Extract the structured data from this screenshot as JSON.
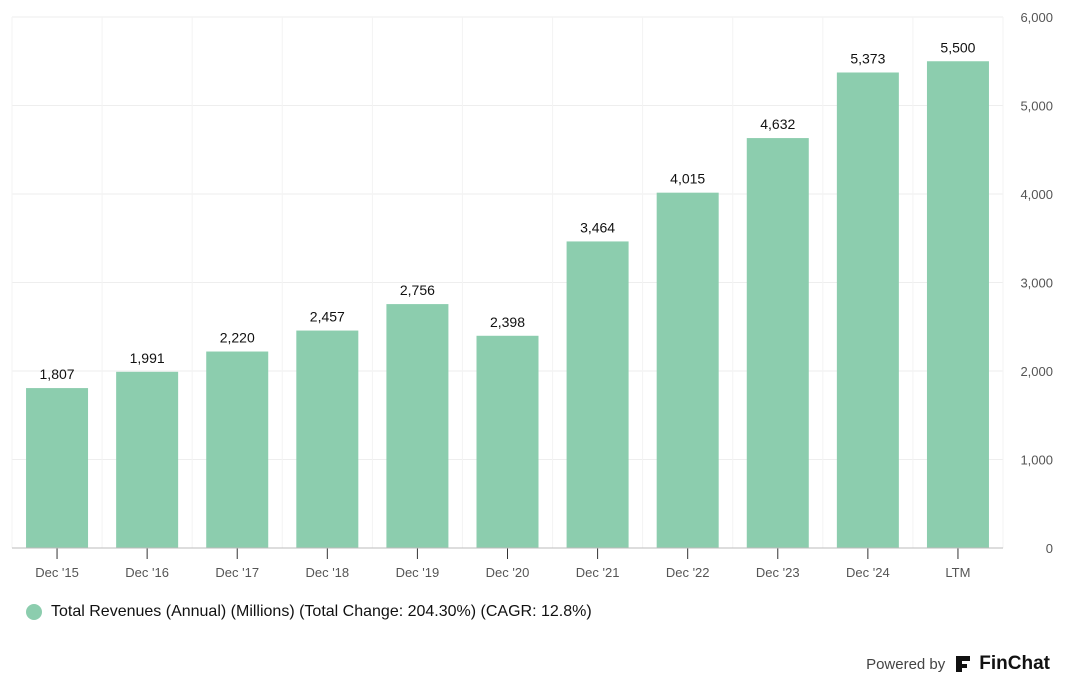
{
  "chart_data": {
    "type": "bar",
    "categories": [
      "Dec '15",
      "Dec '16",
      "Dec '17",
      "Dec '18",
      "Dec '19",
      "Dec '20",
      "Dec '21",
      "Dec '22",
      "Dec '23",
      "Dec '24",
      "LTM"
    ],
    "values": [
      1807,
      1991,
      2220,
      2457,
      2756,
      2398,
      3464,
      4015,
      4632,
      5373,
      5500
    ],
    "value_labels": [
      "1,807",
      "1,991",
      "2,220",
      "2,457",
      "2,756",
      "2,398",
      "3,464",
      "4,015",
      "4,632",
      "5,373",
      "5,500"
    ],
    "ylim": [
      0,
      6000
    ],
    "yticks": [
      0,
      1000,
      2000,
      3000,
      4000,
      5000,
      6000
    ],
    "ytick_labels": [
      "0",
      "1,000",
      "2,000",
      "3,000",
      "4,000",
      "5,000",
      "6,000"
    ],
    "y_axis_side": "right",
    "grid": true,
    "bar_color": "#8ccdae",
    "legend_placement": "bottom-left",
    "series": [
      {
        "name": "Total Revenues (Annual) (Millions) (Total Change: 204.30%) (CAGR: 12.8%)",
        "color": "#8ccdae"
      }
    ]
  },
  "legend": {
    "label": "Total Revenues (Annual) (Millions) (Total Change: 204.30%) (CAGR: 12.8%)",
    "color": "#8ccdae"
  },
  "footer": {
    "powered_by": "Powered by",
    "brand": "FinChat",
    "brand_icon": "finchat-logo-icon"
  }
}
